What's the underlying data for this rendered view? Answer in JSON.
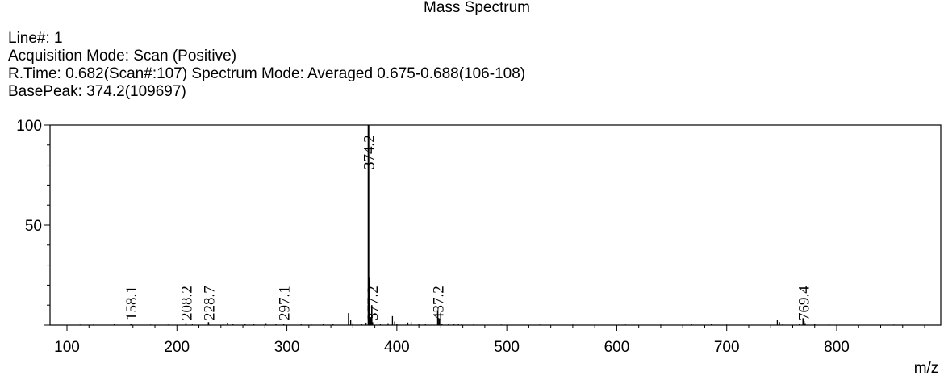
{
  "chart_data": {
    "type": "bar",
    "title": "Mass Spectrum",
    "info": {
      "line": "Line#: 1",
      "acquisition": "Acquisition Mode: Scan (Positive)",
      "rtime": "R.Time: 0.682(Scan#:107)  Spectrum Mode: Averaged 0.675-0.688(106-108)",
      "basepeak": "BasePeak: 374.2(109697)"
    },
    "xlabel": "m/z",
    "ylabel": "",
    "xlim": [
      85,
      895
    ],
    "ylim": [
      0,
      100
    ],
    "xticks": [
      100,
      200,
      300,
      400,
      500,
      600,
      700,
      800
    ],
    "yticks": [
      50,
      100
    ],
    "labeled_peaks": [
      {
        "mz": 158.1,
        "intensity": 0.8,
        "label": "158.1"
      },
      {
        "mz": 208.2,
        "intensity": 1.0,
        "label": "208.2"
      },
      {
        "mz": 228.7,
        "intensity": 1.5,
        "label": "228.7"
      },
      {
        "mz": 297.1,
        "intensity": 0.8,
        "label": "297.1"
      },
      {
        "mz": 374.2,
        "intensity": 100,
        "label": "374.2"
      },
      {
        "mz": 377.2,
        "intensity": 10,
        "label": "377.2"
      },
      {
        "mz": 437.2,
        "intensity": 7.5,
        "label": "437.2"
      },
      {
        "mz": 769.4,
        "intensity": 3.5,
        "label": "769.4"
      }
    ],
    "other_peaks": [
      {
        "mz": 112,
        "intensity": 0.3
      },
      {
        "mz": 124,
        "intensity": 0.3
      },
      {
        "mz": 143,
        "intensity": 0.4
      },
      {
        "mz": 176,
        "intensity": 0.3
      },
      {
        "mz": 192,
        "intensity": 0.3
      },
      {
        "mz": 214,
        "intensity": 0.5
      },
      {
        "mz": 242,
        "intensity": 0.4
      },
      {
        "mz": 246,
        "intensity": 1.2
      },
      {
        "mz": 251,
        "intensity": 0.6
      },
      {
        "mz": 262,
        "intensity": 0.5
      },
      {
        "mz": 270,
        "intensity": 0.4
      },
      {
        "mz": 281,
        "intensity": 1.0
      },
      {
        "mz": 290,
        "intensity": 0.5
      },
      {
        "mz": 313,
        "intensity": 0.4
      },
      {
        "mz": 322,
        "intensity": 0.5
      },
      {
        "mz": 333,
        "intensity": 0.5
      },
      {
        "mz": 342,
        "intensity": 0.6
      },
      {
        "mz": 356,
        "intensity": 6.0
      },
      {
        "mz": 358,
        "intensity": 2.5
      },
      {
        "mz": 360,
        "intensity": 1.0
      },
      {
        "mz": 368,
        "intensity": 0.8
      },
      {
        "mz": 372,
        "intensity": 1.2
      },
      {
        "mz": 375.2,
        "intensity": 24
      },
      {
        "mz": 376.2,
        "intensity": 4.0
      },
      {
        "mz": 378,
        "intensity": 1.5
      },
      {
        "mz": 385,
        "intensity": 0.5
      },
      {
        "mz": 392,
        "intensity": 1.0
      },
      {
        "mz": 396,
        "intensity": 4.5
      },
      {
        "mz": 398,
        "intensity": 1.8
      },
      {
        "mz": 400,
        "intensity": 0.8
      },
      {
        "mz": 410,
        "intensity": 1.3
      },
      {
        "mz": 413,
        "intensity": 1.5
      },
      {
        "mz": 420,
        "intensity": 0.5
      },
      {
        "mz": 426,
        "intensity": 0.6
      },
      {
        "mz": 438.2,
        "intensity": 3.5
      },
      {
        "mz": 439,
        "intensity": 2.5
      },
      {
        "mz": 441,
        "intensity": 0.8
      },
      {
        "mz": 447,
        "intensity": 0.5
      },
      {
        "mz": 452,
        "intensity": 0.6
      },
      {
        "mz": 456,
        "intensity": 0.8
      },
      {
        "mz": 459,
        "intensity": 0.6
      },
      {
        "mz": 470,
        "intensity": 0.4
      },
      {
        "mz": 495,
        "intensity": 0.3
      },
      {
        "mz": 530,
        "intensity": 0.3
      },
      {
        "mz": 560,
        "intensity": 0.3
      },
      {
        "mz": 608,
        "intensity": 0.3
      },
      {
        "mz": 640,
        "intensity": 0.3
      },
      {
        "mz": 668,
        "intensity": 0.4
      },
      {
        "mz": 686,
        "intensity": 0.4
      },
      {
        "mz": 700,
        "intensity": 0.3
      },
      {
        "mz": 746,
        "intensity": 2.5
      },
      {
        "mz": 748,
        "intensity": 1.5
      },
      {
        "mz": 751,
        "intensity": 0.8
      },
      {
        "mz": 766,
        "intensity": 0.8
      },
      {
        "mz": 770.4,
        "intensity": 2.0
      },
      {
        "mz": 771.4,
        "intensity": 1.0
      },
      {
        "mz": 780,
        "intensity": 0.4
      },
      {
        "mz": 793,
        "intensity": 0.4
      },
      {
        "mz": 852,
        "intensity": 0.3
      }
    ]
  }
}
